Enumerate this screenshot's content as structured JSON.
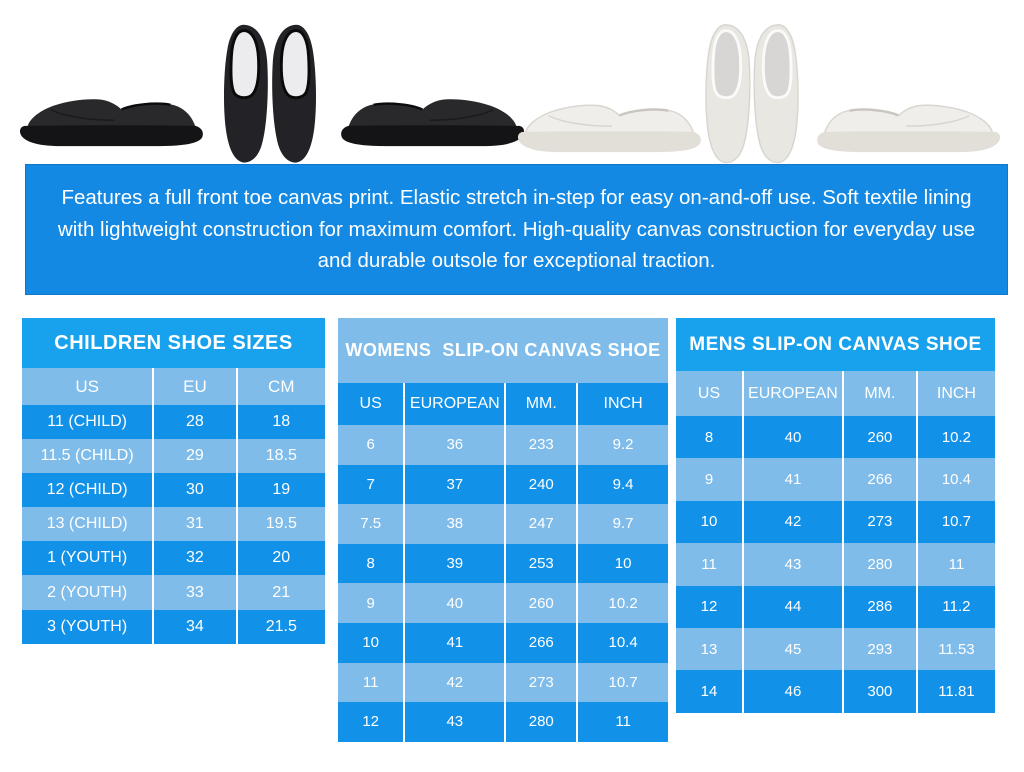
{
  "colors": {
    "banner_blue": "#1489e4",
    "title_blue": "#18a2ee",
    "row_dark": "#1291e9",
    "row_light": "#7fbce9",
    "text_white": "#ffffff"
  },
  "gallery": {
    "images": [
      "black slip-on canvas shoe side view facing left",
      "black slip-on canvas shoes pair top view",
      "black slip-on canvas shoe side view facing right",
      "white slip-on canvas shoe side view facing left",
      "white slip-on canvas shoes pair top view",
      "white slip-on canvas shoe side view facing right"
    ]
  },
  "description": {
    "text": "Features a full front toe canvas print. Elastic stretch in-step for easy on-and-off use. Soft textile lining with lightweight construction for maximum comfort. High-quality canvas construction for everyday use and durable outsole for exceptional traction."
  },
  "tables": {
    "children": {
      "title": "CHILDREN SHOE SIZES",
      "headers": [
        "US",
        "EU",
        "CM"
      ],
      "rows": [
        [
          "11 (CHILD)",
          "28",
          "18"
        ],
        [
          "11.5 (CHILD)",
          "29",
          "18.5"
        ],
        [
          "12 (CHILD)",
          "30",
          "19"
        ],
        [
          "13 (CHILD)",
          "31",
          "19.5"
        ],
        [
          "1 (YOUTH)",
          "32",
          "20"
        ],
        [
          "2 (YOUTH)",
          "33",
          "21"
        ],
        [
          "3 (YOUTH)",
          "34",
          "21.5"
        ]
      ]
    },
    "womens": {
      "title": "WOMENS  SLIP-ON CANVAS SHOE",
      "headers": [
        "US",
        "EUROPEAN",
        "MM.",
        "INCH"
      ],
      "rows": [
        [
          "6",
          "36",
          "233",
          "9.2"
        ],
        [
          "7",
          "37",
          "240",
          "9.4"
        ],
        [
          "7.5",
          "38",
          "247",
          "9.7"
        ],
        [
          "8",
          "39",
          "253",
          "10"
        ],
        [
          "9",
          "40",
          "260",
          "10.2"
        ],
        [
          "10",
          "41",
          "266",
          "10.4"
        ],
        [
          "11",
          "42",
          "273",
          "10.7"
        ],
        [
          "12",
          "43",
          "280",
          "11"
        ]
      ]
    },
    "mens": {
      "title": "MENS SLIP-ON CANVAS SHOE",
      "headers": [
        "US",
        "EUROPEAN",
        "MM.",
        "INCH"
      ],
      "rows": [
        [
          "8",
          "40",
          "260",
          "10.2"
        ],
        [
          "9",
          "41",
          "266",
          "10.4"
        ],
        [
          "10",
          "42",
          "273",
          "10.7"
        ],
        [
          "11",
          "43",
          "280",
          "11"
        ],
        [
          "12",
          "44",
          "286",
          "11.2"
        ],
        [
          "13",
          "45",
          "293",
          "11.53"
        ],
        [
          "14",
          "46",
          "300",
          "11.81"
        ]
      ]
    }
  }
}
